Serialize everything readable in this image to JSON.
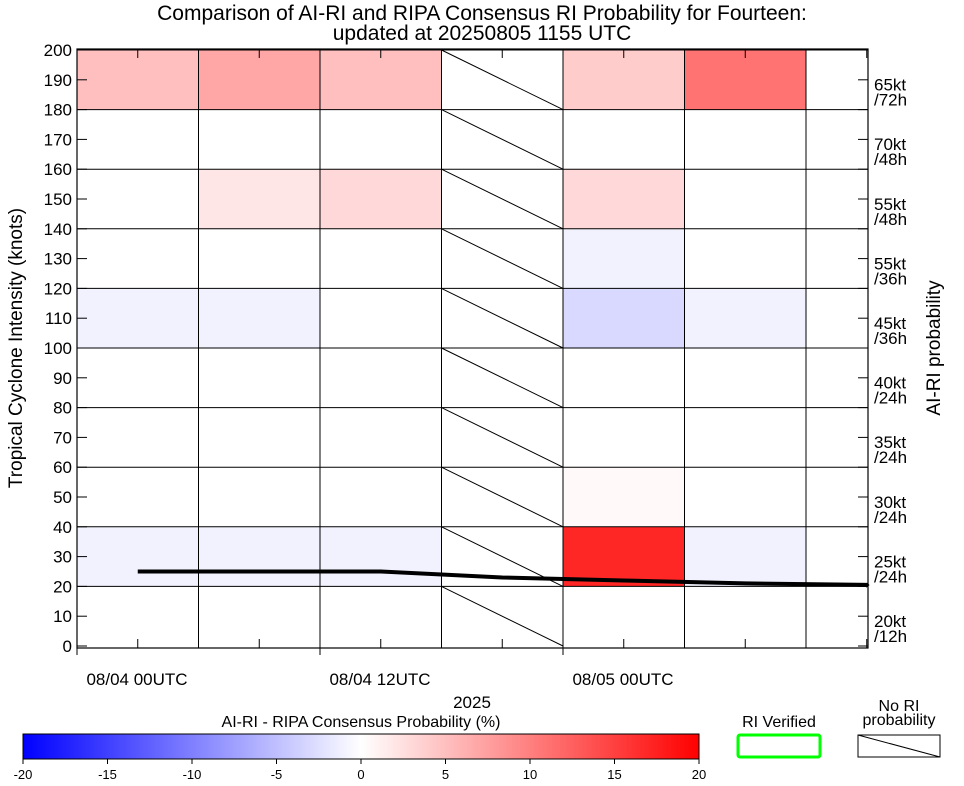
{
  "chart_data": {
    "type": "heatmap",
    "title": "Comparison of AI-RI and RIPA Consensus RI Probability for Fourteen:",
    "subtitle": "updated at 20250805 1155 UTC",
    "ylabel": "Tropical Cyclone Intensity (knots)",
    "y2label": "AI-RI probability",
    "xlabel": "2025",
    "ylim": [
      0,
      200
    ],
    "yticks": [
      "0",
      "10",
      "20",
      "30",
      "40",
      "50",
      "60",
      "70",
      "80",
      "90",
      "100",
      "110",
      "120",
      "130",
      "140",
      "150",
      "160",
      "170",
      "180",
      "190",
      "200"
    ],
    "xtick_labels": [
      {
        "label": "08/04 00UTC",
        "col": 0
      },
      {
        "label": "08/04 12UTC",
        "col": 2
      },
      {
        "label": "08/05 00UTC",
        "col": 4
      }
    ],
    "columns": 6,
    "time_step_hours": 6,
    "no_ri_columns": [
      3
    ],
    "row_bands": [
      {
        "lo": 0,
        "hi": 20,
        "label1": "20kt",
        "label2": "/12h"
      },
      {
        "lo": 20,
        "hi": 40,
        "label1": "25kt",
        "label2": "/24h"
      },
      {
        "lo": 40,
        "hi": 60,
        "label1": "30kt",
        "label2": "/24h"
      },
      {
        "lo": 60,
        "hi": 80,
        "label1": "35kt",
        "label2": "/24h"
      },
      {
        "lo": 80,
        "hi": 100,
        "label1": "40kt",
        "label2": "/24h"
      },
      {
        "lo": 100,
        "hi": 120,
        "label1": "45kt",
        "label2": "/36h"
      },
      {
        "lo": 120,
        "hi": 140,
        "label1": "55kt",
        "label2": "/36h"
      },
      {
        "lo": 140,
        "hi": 160,
        "label1": "55kt",
        "label2": "/48h"
      },
      {
        "lo": 160,
        "hi": 180,
        "label1": "70kt",
        "label2": "/48h"
      },
      {
        "lo": 180,
        "hi": 200,
        "label1": "65kt",
        "label2": "/72h"
      }
    ],
    "cell_values": [
      [
        0,
        0,
        0,
        null,
        0,
        0
      ],
      [
        -1,
        -1,
        -1,
        null,
        17,
        -1
      ],
      [
        0,
        0,
        0,
        null,
        0.5,
        0
      ],
      [
        0,
        0,
        0,
        null,
        0,
        0
      ],
      [
        0,
        0,
        0,
        null,
        0,
        0
      ],
      [
        -1,
        -1,
        0,
        null,
        -3,
        -1
      ],
      [
        0,
        0,
        0,
        null,
        -1,
        0
      ],
      [
        0,
        2,
        3,
        null,
        3,
        0
      ],
      [
        0,
        0,
        0,
        null,
        0,
        0
      ],
      [
        5,
        7,
        5,
        null,
        4,
        11
      ]
    ],
    "intensity_line": {
      "name": "Tropical Cyclone Intensity",
      "x_hours": [
        3,
        9,
        15,
        21,
        27,
        33,
        39,
        45
      ],
      "y_kt": [
        25,
        25,
        25,
        23,
        22,
        21,
        20.5,
        20
      ]
    },
    "colorbar": {
      "label": "AI-RI - RIPA Consensus Probability (%)",
      "min": -20,
      "max": 20,
      "ticks": [
        "-20",
        "-15",
        "-10",
        "-5",
        "0",
        "5",
        "10",
        "15",
        "20"
      ],
      "colors": {
        "neg": "#0000ff",
        "mid": "#ffffff",
        "pos": "#ff0000"
      }
    },
    "legend": {
      "verified_label": "RI Verified",
      "verified_color": "#00ff00",
      "no_ri_label1": "No RI",
      "no_ri_label2": "probability"
    }
  }
}
